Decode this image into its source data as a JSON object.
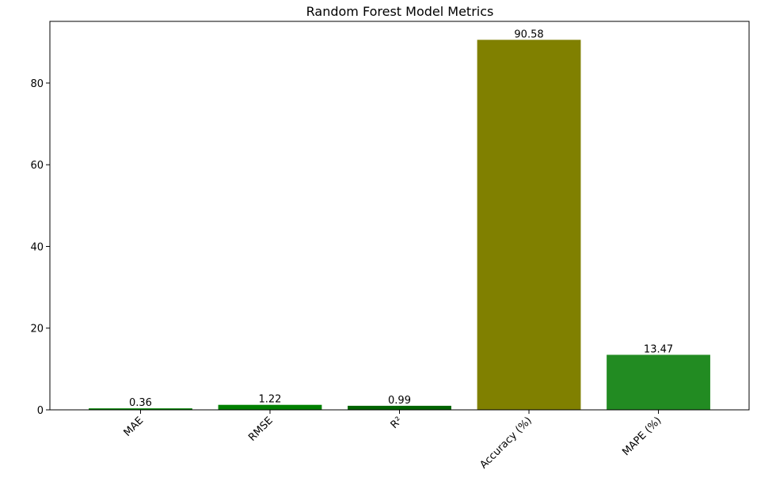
{
  "chart_data": {
    "type": "bar",
    "title": "Random Forest Model Metrics",
    "xlabel": "",
    "ylabel": "",
    "categories": [
      "MAE",
      "RMSE",
      "R²",
      "Accuracy (%)",
      "MAPE (%)"
    ],
    "values": [
      0.36,
      1.22,
      0.99,
      90.58,
      13.47
    ],
    "value_labels": [
      "0.36",
      "1.22",
      "0.99",
      "90.58",
      "13.47"
    ],
    "colors": [
      "#008000",
      "#008000",
      "#006400",
      "#808000",
      "#228B22"
    ],
    "ylim": [
      0,
      95.1
    ],
    "yticks": [
      0,
      20,
      40,
      60,
      80
    ],
    "ytick_labels": [
      "0",
      "20",
      "40",
      "60",
      "80"
    ],
    "grid": false,
    "legend": "none",
    "xtick_rotation": 45
  }
}
